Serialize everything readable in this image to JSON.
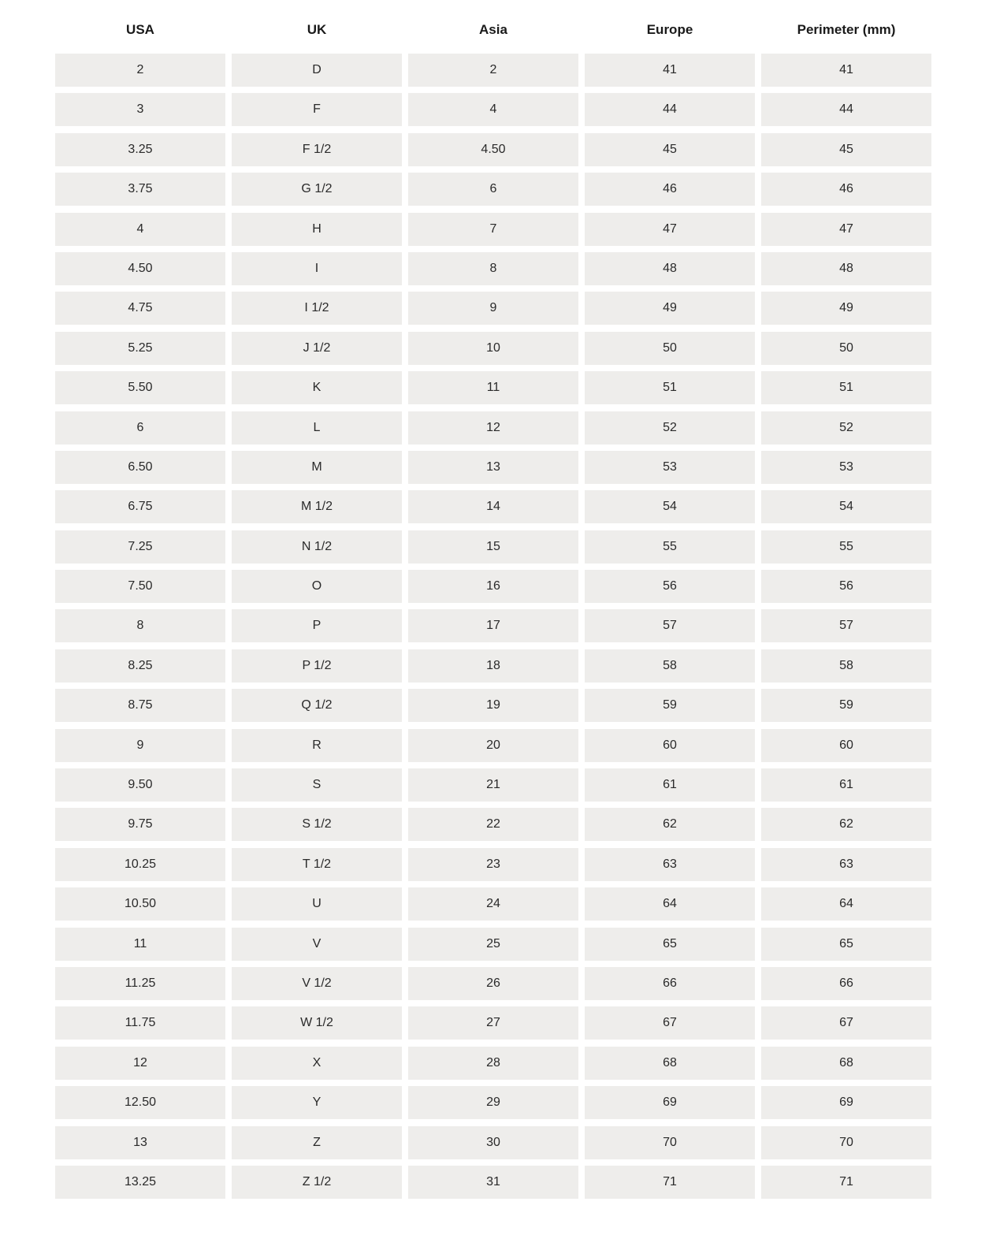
{
  "table": {
    "headers": [
      "USA",
      "UK",
      "Asia",
      "Europe",
      "Perimeter (mm)"
    ],
    "rows": [
      [
        "2",
        "D",
        "2",
        "41",
        "41"
      ],
      [
        "3",
        "F",
        "4",
        "44",
        "44"
      ],
      [
        "3.25",
        "F 1/2",
        "4.50",
        "45",
        "45"
      ],
      [
        "3.75",
        "G 1/2",
        "6",
        "46",
        "46"
      ],
      [
        "4",
        "H",
        "7",
        "47",
        "47"
      ],
      [
        "4.50",
        "I",
        "8",
        "48",
        "48"
      ],
      [
        "4.75",
        "I 1/2",
        "9",
        "49",
        "49"
      ],
      [
        "5.25",
        "J 1/2",
        "10",
        "50",
        "50"
      ],
      [
        "5.50",
        "K",
        "11",
        "51",
        "51"
      ],
      [
        "6",
        "L",
        "12",
        "52",
        "52"
      ],
      [
        "6.50",
        "M",
        "13",
        "53",
        "53"
      ],
      [
        "6.75",
        "M 1/2",
        "14",
        "54",
        "54"
      ],
      [
        "7.25",
        "N 1/2",
        "15",
        "55",
        "55"
      ],
      [
        "7.50",
        "O",
        "16",
        "56",
        "56"
      ],
      [
        "8",
        "P",
        "17",
        "57",
        "57"
      ],
      [
        "8.25",
        "P 1/2",
        "18",
        "58",
        "58"
      ],
      [
        "8.75",
        "Q 1/2",
        "19",
        "59",
        "59"
      ],
      [
        "9",
        "R",
        "20",
        "60",
        "60"
      ],
      [
        "9.50",
        "S",
        "21",
        "61",
        "61"
      ],
      [
        "9.75",
        "S 1/2",
        "22",
        "62",
        "62"
      ],
      [
        "10.25",
        "T 1/2",
        "23",
        "63",
        "63"
      ],
      [
        "10.50",
        "U",
        "24",
        "64",
        "64"
      ],
      [
        "11",
        "V",
        "25",
        "65",
        "65"
      ],
      [
        "11.25",
        "V 1/2",
        "26",
        "66",
        "66"
      ],
      [
        "11.75",
        "W 1/2",
        "27",
        "67",
        "67"
      ],
      [
        "12",
        "X",
        "28",
        "68",
        "68"
      ],
      [
        "12.50",
        "Y",
        "29",
        "69",
        "69"
      ],
      [
        "13",
        "Z",
        "30",
        "70",
        "70"
      ],
      [
        "13.25",
        "Z 1/2",
        "31",
        "71",
        "71"
      ]
    ]
  }
}
